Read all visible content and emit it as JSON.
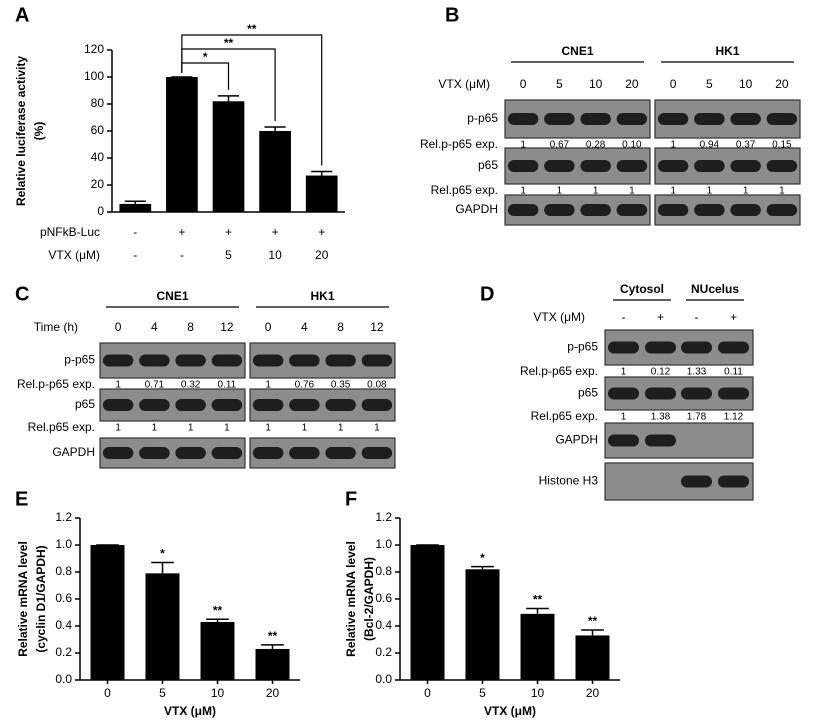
{
  "chart_data": [
    {
      "type": "bar",
      "panel": "A",
      "ylabel": [
        "Relative luciferase activity",
        "(%)"
      ],
      "rows": [
        {
          "label": "pNFkB-Luc",
          "values": [
            "-",
            "+",
            "+",
            "+",
            "+"
          ]
        },
        {
          "label": "VTX (μM)",
          "values": [
            "-",
            "-",
            "5",
            "10",
            "20"
          ]
        }
      ],
      "values": [
        6,
        100,
        82,
        60,
        27
      ],
      "errors": [
        2,
        0,
        4,
        3,
        3
      ],
      "significance": [
        null,
        null,
        "*",
        "**",
        "**"
      ],
      "ylim": [
        0,
        120
      ],
      "yticks": [
        0,
        20,
        40,
        60,
        80,
        100,
        120
      ],
      "color": "#000000"
    },
    {
      "type": "bar",
      "panel": "E",
      "ylabel": [
        "Relative mRNA level",
        "(cyclin D1/GAPDH)"
      ],
      "xlabel": "VTX (μM)",
      "categories": [
        "0",
        "5",
        "10",
        "20"
      ],
      "values": [
        1.0,
        0.79,
        0.43,
        0.23
      ],
      "errors": [
        0,
        0.08,
        0.02,
        0.03
      ],
      "significance": [
        null,
        "*",
        "**",
        "**"
      ],
      "ylim": [
        0,
        1.2
      ],
      "yticks": [
        {
          "value": 0,
          "label": "0.0"
        },
        0.2,
        0.4,
        0.6,
        0.8,
        {
          "value": 1,
          "label": "1.0"
        },
        1.2
      ],
      "color": "#000000"
    },
    {
      "type": "bar",
      "panel": "F",
      "ylabel": [
        "Relative mRNA level",
        "(Bcl-2/GAPDH)"
      ],
      "xlabel": "VTX (μM)",
      "categories": [
        "0",
        "5",
        "10",
        "20"
      ],
      "values": [
        1.0,
        0.82,
        0.49,
        0.33
      ],
      "errors": [
        0,
        0.02,
        0.04,
        0.04
      ],
      "significance": [
        null,
        "*",
        "**",
        "**"
      ],
      "ylim": [
        0,
        1.2
      ],
      "yticks": [
        {
          "value": 0,
          "label": "0.0"
        },
        0.2,
        0.4,
        0.6,
        0.8,
        {
          "value": 1,
          "label": "1.0"
        },
        1.2
      ],
      "color": "#000000"
    }
  ],
  "blots": [
    {
      "panel": "B",
      "condition_label": "VTX (μM)",
      "groups": [
        {
          "name": "CNE1",
          "conditions": [
            "0",
            "5",
            "10",
            "20"
          ]
        },
        {
          "name": "HK1",
          "conditions": [
            "0",
            "5",
            "10",
            "20"
          ]
        }
      ],
      "rows": [
        {
          "label": "p-p65",
          "quant_label": "Rel.p-p65 exp.",
          "quant": [
            [
              "1",
              "0.67",
              "0.28",
              "0.10"
            ],
            [
              "1",
              "0.94",
              "0.37",
              "0.15"
            ]
          ]
        },
        {
          "label": "p65",
          "quant_label": "Rel.p65 exp.",
          "quant": [
            [
              "1",
              "1",
              "1",
              "1"
            ],
            [
              "1",
              "1",
              "1",
              "1"
            ]
          ]
        },
        {
          "label": "GAPDH"
        }
      ]
    },
    {
      "panel": "C",
      "condition_label": "Time (h)",
      "groups": [
        {
          "name": "CNE1",
          "conditions": [
            "0",
            "4",
            "8",
            "12"
          ]
        },
        {
          "name": "HK1",
          "conditions": [
            "0",
            "4",
            "8",
            "12"
          ]
        }
      ],
      "rows": [
        {
          "label": "p-p65",
          "quant_label": "Rel.p-p65 exp.",
          "quant": [
            [
              "1",
              "0.71",
              "0.32",
              "0.11"
            ],
            [
              "1",
              "0.76",
              "0.35",
              "0.08"
            ]
          ]
        },
        {
          "label": "p65",
          "quant_label": "Rel.p65 exp.",
          "quant": [
            [
              "1",
              "1",
              "1",
              "1"
            ],
            [
              "1",
              "1",
              "1",
              "1"
            ]
          ]
        },
        {
          "label": "GAPDH"
        }
      ]
    },
    {
      "panel": "D",
      "condition_label": "VTX (μM)",
      "groups": [
        {
          "name": "Cytosol",
          "conditions": [
            "-",
            "+"
          ]
        },
        {
          "name": "NUcelus",
          "conditions": [
            "-",
            "+"
          ]
        }
      ],
      "rows": [
        {
          "label": "p-p65",
          "quant_label": "Rel.p-p65 exp.",
          "quant": [
            [
              "1",
              "0.12"
            ],
            [
              "1.33",
              "0.11"
            ]
          ]
        },
        {
          "label": "p65",
          "quant_label": "Rel.p65 exp.",
          "quant": [
            [
              "1",
              "1.38"
            ],
            [
              "1.78",
              "1.12"
            ]
          ]
        },
        {
          "label": "GAPDH"
        },
        {
          "label": "Histone H3"
        }
      ]
    }
  ]
}
